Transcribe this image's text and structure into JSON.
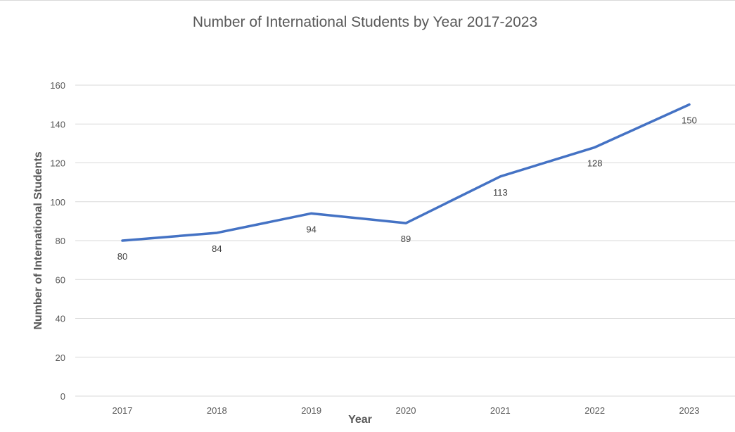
{
  "colors": {
    "line": "#4472c4",
    "gridline": "#d9d9d9",
    "text": "#595959",
    "background": "#ffffff"
  },
  "chart_data": {
    "type": "line",
    "title": "Number of International Students by Year 2017-2023",
    "xlabel": "Year",
    "ylabel": "Number of International Students",
    "categories": [
      "2017",
      "2018",
      "2019",
      "2020",
      "2021",
      "2022",
      "2023"
    ],
    "series": [
      {
        "values": [
          80,
          84,
          94,
          89,
          113,
          128,
          150
        ],
        "color": "#4472c4"
      }
    ],
    "ylim": [
      0,
      160
    ],
    "yticks": [
      "0",
      "20",
      "40",
      "60",
      "80",
      "100",
      "120",
      "140",
      "160"
    ],
    "data_labels": [
      "80",
      "84",
      "94",
      "89",
      "113",
      "128",
      "150"
    ],
    "data_label_position": "below",
    "grid": true,
    "grid_axis": "horizontal",
    "legend": "none"
  }
}
